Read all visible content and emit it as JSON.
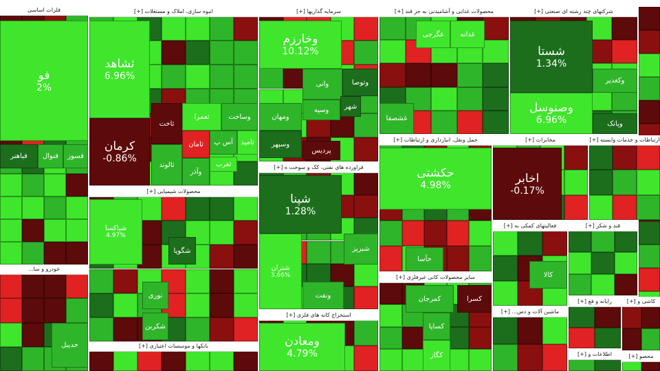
{
  "sectors": [
    {
      "title": "فلزات اساسی",
      "tiles": [
        {
          "label": "فو",
          "change": "2%",
          "color": "#3fe62b"
        },
        {
          "label": "فسوز",
          "color": "#2fb52a"
        },
        {
          "label": "فنوال",
          "color": "#2fb52a"
        },
        {
          "label": "فباهنر",
          "color": "#1c6e1c"
        }
      ]
    },
    {
      "title": "خودرو و سا...",
      "tiles": [
        {
          "label": "حدیبل",
          "color": "#2fb52a"
        }
      ]
    },
    {
      "title": "انبوه سازی، املاک و مستغلات [+]",
      "tiles": [
        {
          "label": "ثشاهد",
          "change": "6.96%",
          "color": "#3fe62b"
        },
        {
          "label": "کرمان",
          "change": "-0.86%",
          "color": "#5c0a0a"
        },
        {
          "label": "ثالوند",
          "color": "#2fb52a"
        },
        {
          "label": "ثاخت",
          "color": "#5c0a0a"
        },
        {
          "label": "ثعمرا",
          "color": "#3fe62b"
        },
        {
          "label": "وساخت",
          "color": "#2fb52a"
        },
        {
          "label": "آس پ",
          "color": "#2fb52a"
        },
        {
          "label": "ثامید",
          "color": "#3fe62b"
        },
        {
          "label": "ثامان",
          "color": "#e02222"
        },
        {
          "label": "وآذر",
          "color": "#2fb52a"
        },
        {
          "label": "ثغرب",
          "color": "#3fe62b"
        }
      ]
    },
    {
      "title": "محصولات شیمیایی [+]",
      "tiles": [
        {
          "label": "شپاکسا",
          "change": "4.97%",
          "color": "#3fe62b"
        },
        {
          "label": "شگویا",
          "color": "#1c6e1c"
        },
        {
          "label": "نوری",
          "color": "#2fb52a"
        },
        {
          "label": "شکربن",
          "color": "#2fb52a"
        }
      ]
    },
    {
      "title": "بانکها و موسسات اعتباری [+]",
      "tiles": []
    },
    {
      "title": "سرمایه گذاریها [+]",
      "tiles": [
        {
          "label": "وخارزم",
          "change": "10.12%",
          "color": "#3fe62b"
        },
        {
          "label": "وتوصا",
          "color": "#1c6e1c"
        },
        {
          "label": "وانی",
          "color": "#2fb52a"
        },
        {
          "label": "ومهان",
          "color": "#2fb52a"
        },
        {
          "label": "وسپه",
          "color": "#2fb52a"
        },
        {
          "label": "شهر",
          "color": "#1c6e1c"
        },
        {
          "label": "وسپهر",
          "color": "#1c6e1c"
        },
        {
          "label": "پردیس",
          "color": "#5c0a0a"
        }
      ]
    },
    {
      "title": "فراورده های نفتی، کک و سوخت ه [+]",
      "tiles": [
        {
          "label": "شپنا",
          "change": "1.28%",
          "color": "#1c6e1c"
        },
        {
          "label": "شتران",
          "change": "3.66%",
          "color": "#3fe62b"
        },
        {
          "label": "شبریز",
          "color": "#2fb52a"
        },
        {
          "label": "ونفت",
          "color": "#2fb52a"
        }
      ]
    },
    {
      "title": "استخراج کانه های فلزی [+]",
      "tiles": [
        {
          "label": "ومعادن",
          "change": "4.79%",
          "color": "#3fe62b"
        }
      ]
    },
    {
      "title": "محصولات غذایی و آشامیدنی به جز قند [+]",
      "tiles": [
        {
          "label": "غگرجی",
          "color": "#3fe62b"
        },
        {
          "label": "غدانه",
          "color": "#3fe62b"
        },
        {
          "label": "غشصفا",
          "color": "#2fb52a"
        }
      ]
    },
    {
      "title": "حمل ونقل، انبارداری و ارتباطات [+]",
      "tiles": [
        {
          "label": "حکشتی",
          "change": "4.98%",
          "color": "#3fe62b"
        },
        {
          "label": "حآسا",
          "color": "#2fb52a"
        }
      ]
    },
    {
      "title": "سایر محصولات کانی غیرفلزی [+]",
      "tiles": [
        {
          "label": "کسرا",
          "color": "#5c0a0a"
        },
        {
          "label": "کمرجان",
          "color": "#2fb52a"
        },
        {
          "label": "کساپا",
          "color": "#2fb52a"
        },
        {
          "label": "کگاز",
          "color": "#3fe62b"
        }
      ]
    },
    {
      "title": "شرکتهای چند رشته ای صنعتی [+]",
      "tiles": [
        {
          "label": "شستا",
          "change": "1.34%",
          "color": "#1c6e1c"
        },
        {
          "label": "وکغدیر",
          "color": "#2fb52a"
        },
        {
          "label": "وصنوسل",
          "change": "6.96%",
          "color": "#3fe62b"
        },
        {
          "label": "وپانک",
          "color": "#1c6e1c"
        }
      ]
    },
    {
      "title": "مخابرات [+]",
      "tiles": [
        {
          "label": "اخابر",
          "change": "-0.17%",
          "color": "#5c0a0a"
        }
      ]
    },
    {
      "title": "ارتباطات و خدمات وابسته [+]",
      "tiles": []
    },
    {
      "title": "فعالیتهای کمکی به [+]",
      "tiles": [
        {
          "label": "کالا",
          "color": "#2fb52a"
        }
      ]
    },
    {
      "title": "قند و شکر [+]",
      "tiles": []
    },
    {
      "title": "ماشین آلات و دس... [+]",
      "tiles": []
    },
    {
      "title": "رایانه و فع [+]",
      "tiles": []
    },
    {
      "title": "اطلاعات و [+]",
      "tiles": []
    },
    {
      "title": "کاشی و [+]",
      "tiles": []
    },
    {
      "title": "محصو [+]",
      "tiles": []
    }
  ]
}
